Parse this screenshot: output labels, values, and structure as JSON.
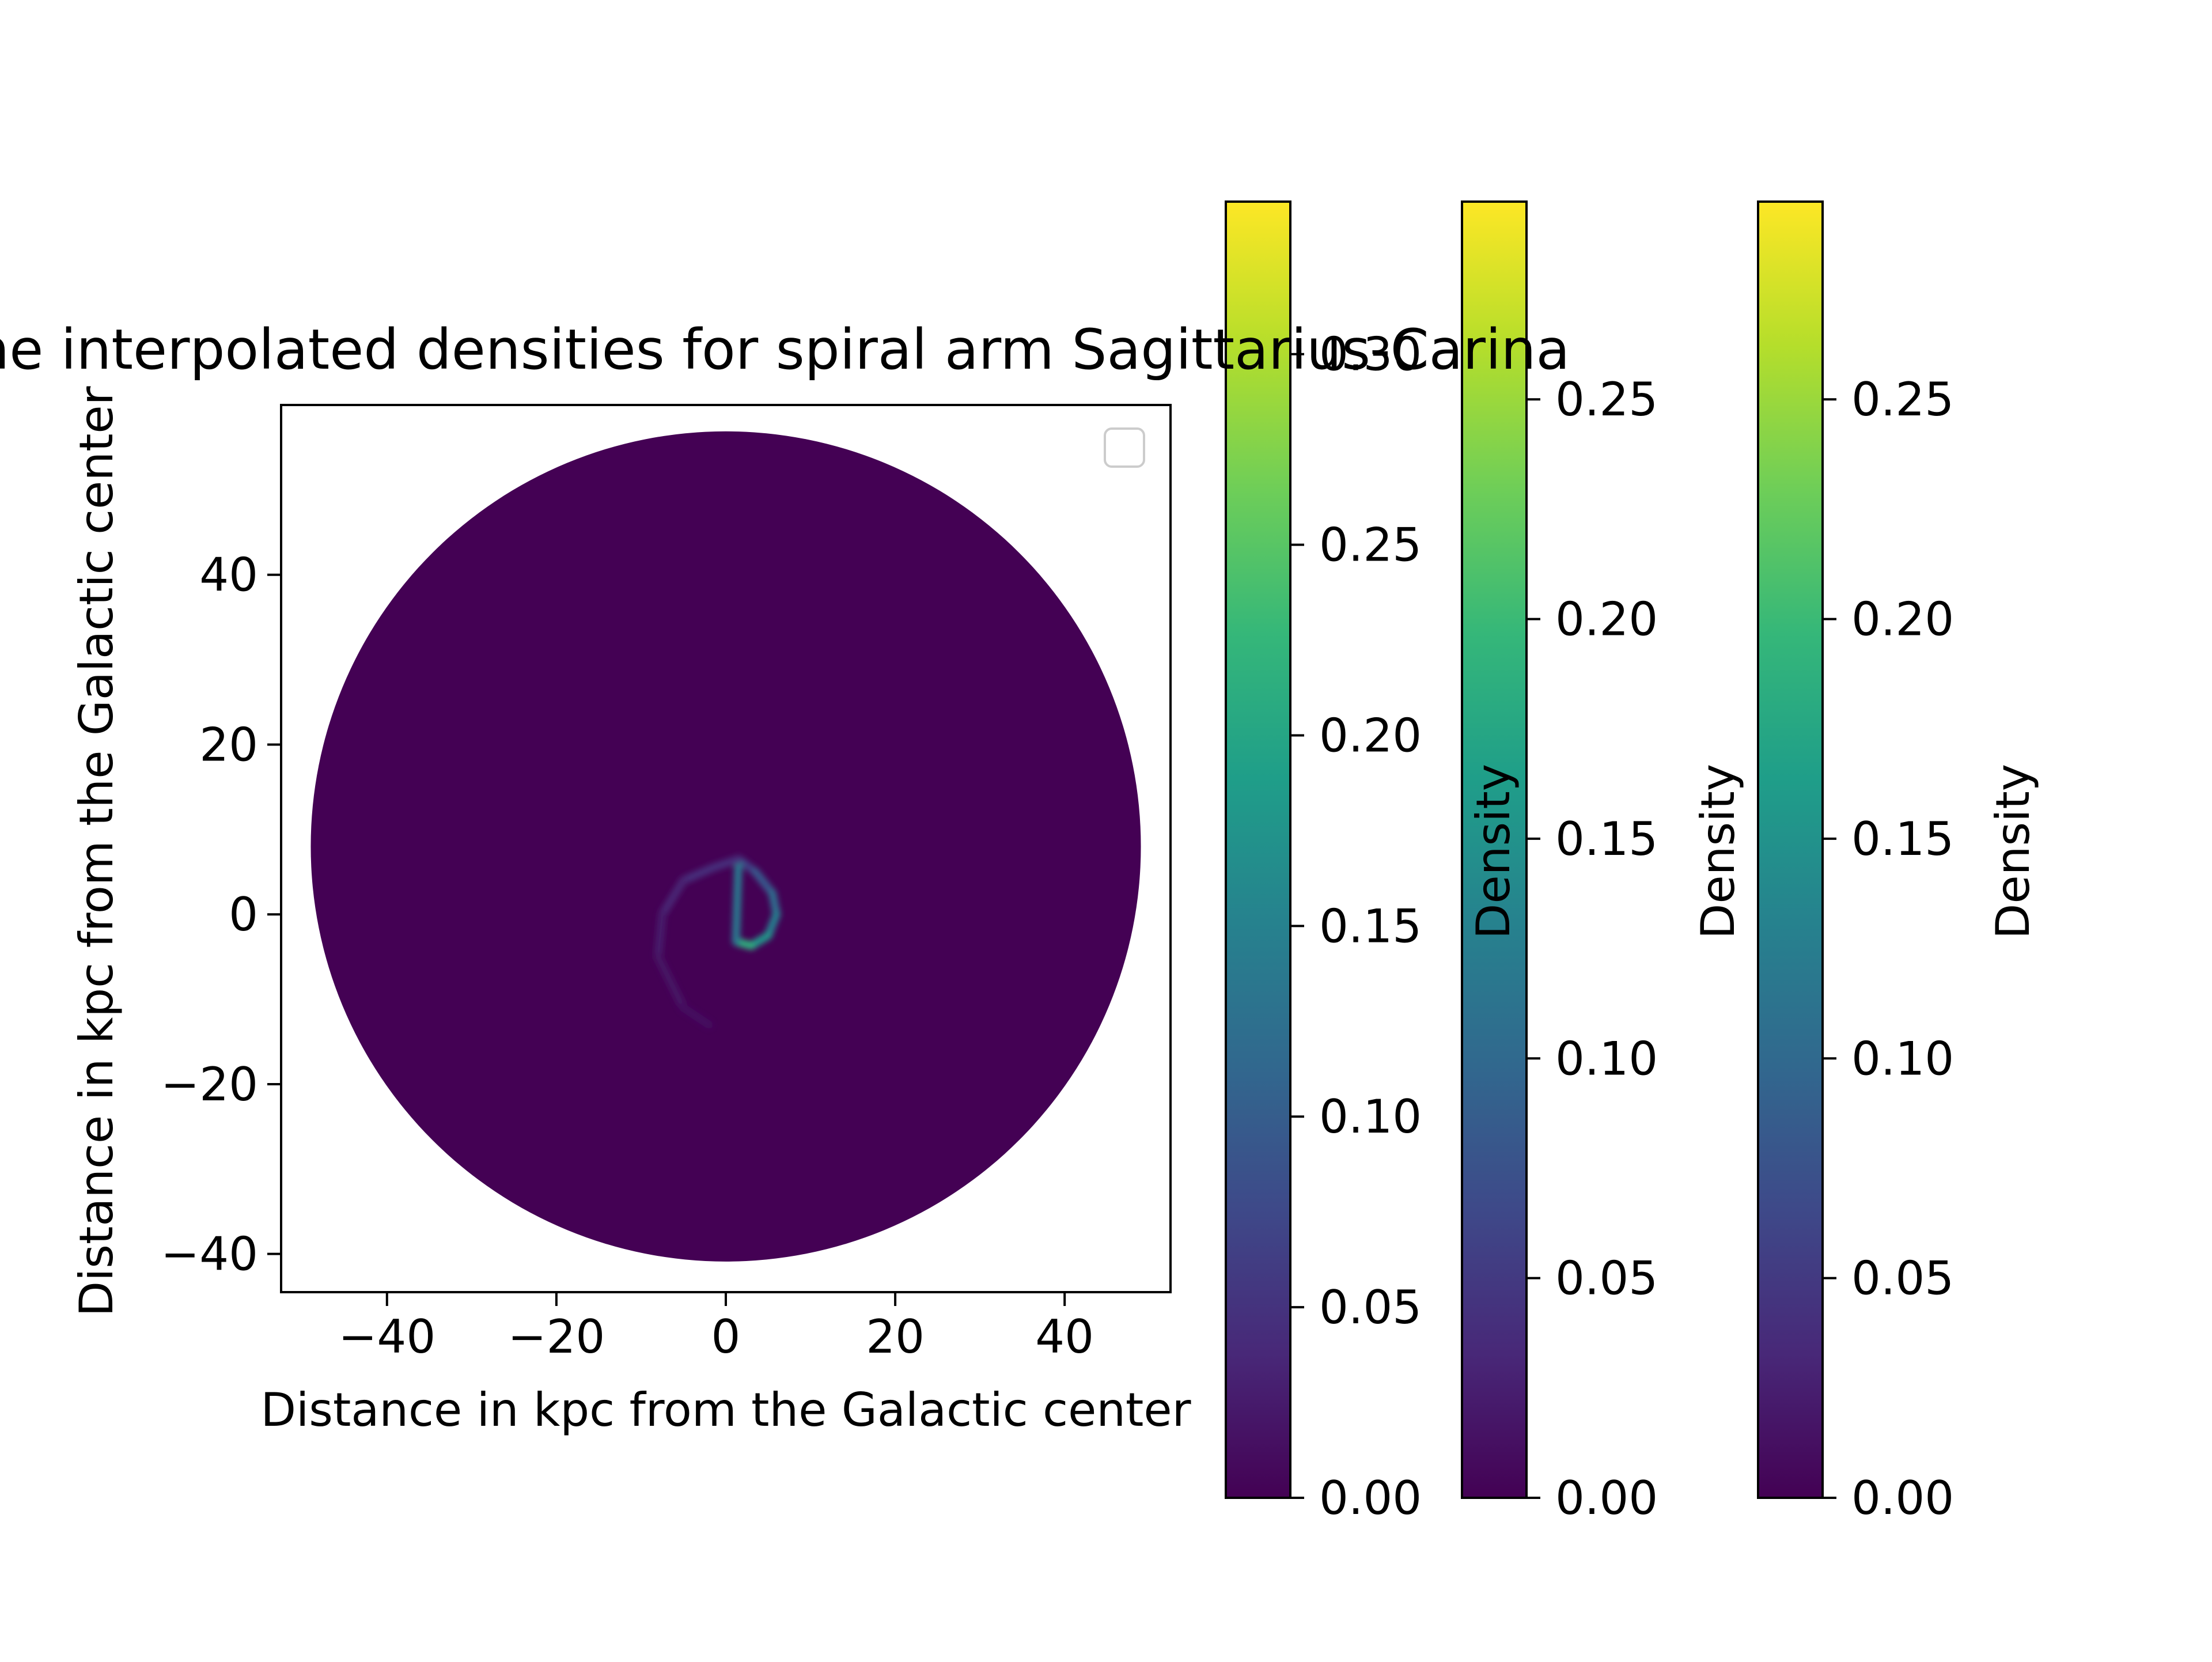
{
  "chart_data": {
    "type": "heatmap",
    "title": "of the interpolated densities for spiral arm Sagittarius-Carina",
    "xlabel": "Distance in kpc from the Galactic center",
    "ylabel": "Distance in kpc from the Galactic center",
    "xlim": [
      -52.5,
      52.5
    ],
    "ylim": [
      -44.5,
      60
    ],
    "x_ticks": [
      -40,
      -20,
      0,
      20,
      40
    ],
    "y_ticks": [
      -40,
      -20,
      0,
      20,
      40
    ],
    "x_tick_labels": [
      "−40",
      "−20",
      "0",
      "20",
      "40"
    ],
    "y_tick_labels": [
      "−40",
      "−20",
      "0",
      "20",
      "40"
    ],
    "disk": {
      "center": [
        0,
        8
      ],
      "radius": 49,
      "background_density": 0.0
    },
    "spiral_arm": {
      "name": "Sagittarius-Carina",
      "points": [
        {
          "x": 1.5,
          "y": 6.5,
          "density": 0.05
        },
        {
          "x": 3.5,
          "y": 5.0,
          "density": 0.08
        },
        {
          "x": 5.5,
          "y": 2.5,
          "density": 0.11
        },
        {
          "x": 6.0,
          "y": 0.0,
          "density": 0.13
        },
        {
          "x": 5.0,
          "y": -2.5,
          "density": 0.16
        },
        {
          "x": 3.0,
          "y": -3.7,
          "density": 0.2
        },
        {
          "x": 1.2,
          "y": -3.2,
          "density": 0.23
        },
        {
          "x": 1.5,
          "y": 6.5,
          "density": 0.04
        },
        {
          "x": -1.5,
          "y": 5.5,
          "density": 0.05
        },
        {
          "x": -5.0,
          "y": 4.0,
          "density": 0.04
        },
        {
          "x": -7.5,
          "y": 0.0,
          "density": 0.03
        },
        {
          "x": -8.0,
          "y": -5.0,
          "density": 0.02
        },
        {
          "x": -5.0,
          "y": -11.0,
          "density": 0.015
        },
        {
          "x": -2.0,
          "y": -13.0,
          "density": 0.01
        }
      ]
    },
    "legend": {
      "placement": "upper right",
      "entries": []
    },
    "colorbars": [
      {
        "label": "",
        "min": 0.0,
        "max": 0.34,
        "ticks": [
          0.0,
          0.05,
          0.1,
          0.15,
          0.2,
          0.25,
          0.3
        ],
        "tick_labels": [
          "0.00",
          "0.05",
          "0.10",
          "0.15",
          "0.20",
          "0.25",
          "0.30"
        ]
      },
      {
        "label": "Density",
        "min": 0.0,
        "max": 0.295,
        "ticks": [
          0.0,
          0.05,
          0.1,
          0.15,
          0.2,
          0.25
        ],
        "tick_labels": [
          "0.00",
          "0.05",
          "0.10",
          "0.15",
          "0.20",
          "0.25"
        ]
      },
      {
        "label": "Density",
        "min": 0.0,
        "max": 0.295,
        "ticks": [
          0.0,
          0.05,
          0.1,
          0.15,
          0.2,
          0.25
        ],
        "tick_labels": [
          "0.00",
          "0.05",
          "0.10",
          "0.15",
          "0.20",
          "0.25"
        ]
      }
    ],
    "second_colorbar_left_label": "Density",
    "colormap": "viridis",
    "colormap_stops": [
      "#440154",
      "#482878",
      "#3e4989",
      "#31688e",
      "#26828e",
      "#1f9e89",
      "#35b779",
      "#6ece58",
      "#b5de2b",
      "#fde725"
    ]
  }
}
